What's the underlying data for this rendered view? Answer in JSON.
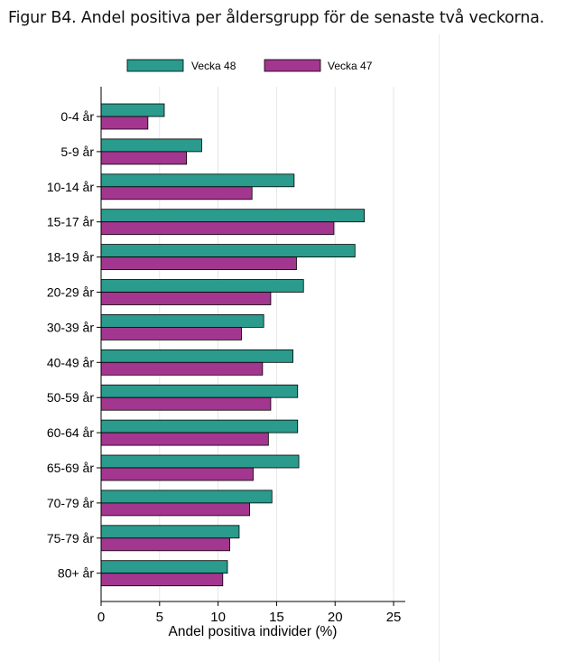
{
  "figure": {
    "title": "Figur B4. Andel positiva per åldersgrupp för de senaste två veckorna."
  },
  "colors": {
    "vecka48": "#2a9b8c",
    "vecka47": "#a3368f",
    "grid": "#e6e6e6",
    "axis": "#000000"
  },
  "chart_data": {
    "type": "bar",
    "orientation": "horizontal",
    "title": "Figur B4. Andel positiva per åldersgrupp för de senaste två veckorna.",
    "xlabel": "Andel positiva individer (%)",
    "ylabel": "",
    "xlim": [
      0,
      26
    ],
    "xticks": [
      0,
      5,
      10,
      15,
      20,
      25
    ],
    "grid": "vertical",
    "legend_position": "top",
    "categories": [
      "0-4 år",
      "5-9 år",
      "10-14 år",
      "15-17 år",
      "18-19 år",
      "20-29 år",
      "30-39 år",
      "40-49 år",
      "50-59 år",
      "60-64 år",
      "65-69 år",
      "70-79 år",
      "75-79 år",
      "80+ år"
    ],
    "series": [
      {
        "name": "Vecka 48",
        "values": [
          5.4,
          8.6,
          16.5,
          22.5,
          21.7,
          17.3,
          13.9,
          16.4,
          16.8,
          16.8,
          16.9,
          14.6,
          11.8,
          10.8
        ]
      },
      {
        "name": "Vecka 47",
        "values": [
          4.0,
          7.3,
          12.9,
          19.9,
          16.7,
          14.5,
          12.0,
          13.8,
          14.5,
          14.3,
          13.0,
          12.7,
          11.0,
          10.4
        ]
      }
    ]
  }
}
